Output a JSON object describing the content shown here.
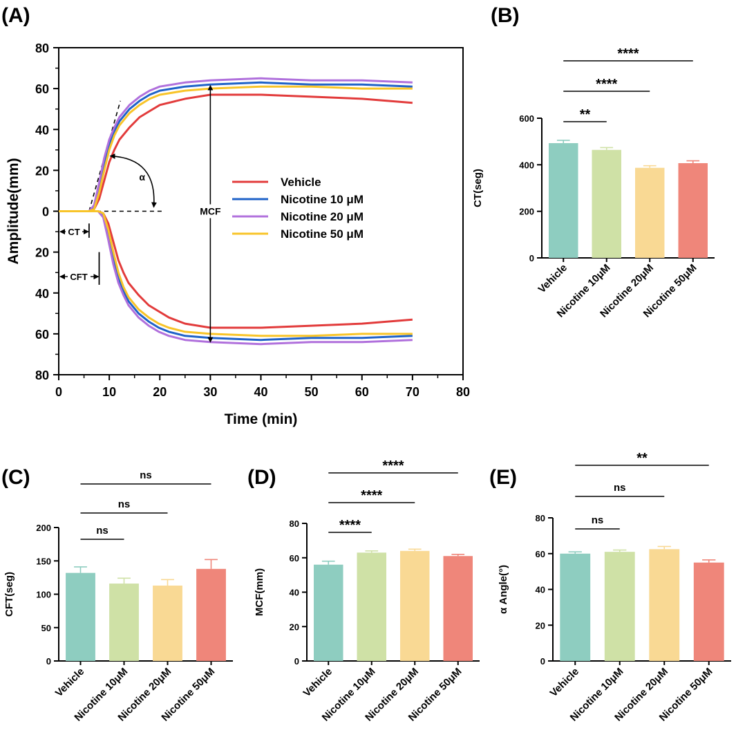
{
  "chart_data": [
    {
      "id": "A",
      "type": "line",
      "panel_label": "(A)",
      "xlabel": "Time (min)",
      "ylabel": "Amplitude(mm)",
      "xlim": [
        0,
        80
      ],
      "ylim": [
        -80,
        80
      ],
      "x_ticks": [
        0,
        10,
        20,
        30,
        40,
        50,
        60,
        70,
        80
      ],
      "y_ticks": [
        80,
        60,
        40,
        20,
        0,
        20,
        40,
        60,
        80
      ],
      "colors": [
        "#e23b3b",
        "#1f62c8",
        "#b070dc",
        "#f8c428"
      ],
      "legend_position": "center",
      "series": [
        {
          "name": "Vehicle",
          "upper": [
            [
              0,
              0
            ],
            [
              6,
              0
            ],
            [
              7,
              1
            ],
            [
              8,
              6
            ],
            [
              9,
              15
            ],
            [
              10,
              24
            ],
            [
              11,
              30
            ],
            [
              12,
              35
            ],
            [
              14,
              41
            ],
            [
              16,
              46
            ],
            [
              18,
              49
            ],
            [
              20,
              52
            ],
            [
              25,
              55
            ],
            [
              30,
              57
            ],
            [
              40,
              57
            ],
            [
              50,
              56
            ],
            [
              60,
              55
            ],
            [
              70,
              53
            ]
          ]
        },
        {
          "name": "Nicotine 10 μM",
          "upper": [
            [
              0,
              0
            ],
            [
              6,
              0
            ],
            [
              7,
              2
            ],
            [
              8,
              12
            ],
            [
              9,
              24
            ],
            [
              10,
              33
            ],
            [
              11,
              39
            ],
            [
              12,
              44
            ],
            [
              14,
              50
            ],
            [
              16,
              54
            ],
            [
              18,
              57
            ],
            [
              20,
              59
            ],
            [
              25,
              61
            ],
            [
              30,
              62
            ],
            [
              40,
              63
            ],
            [
              50,
              62
            ],
            [
              60,
              62
            ],
            [
              70,
              61
            ]
          ]
        },
        {
          "name": "Nicotine 20 μM",
          "upper": [
            [
              0,
              0
            ],
            [
              6,
              0
            ],
            [
              7,
              3
            ],
            [
              8,
              14
            ],
            [
              9,
              26
            ],
            [
              10,
              35
            ],
            [
              11,
              41
            ],
            [
              12,
              46
            ],
            [
              14,
              52
            ],
            [
              16,
              56
            ],
            [
              18,
              59
            ],
            [
              20,
              61
            ],
            [
              25,
              63
            ],
            [
              30,
              64
            ],
            [
              40,
              65
            ],
            [
              50,
              64
            ],
            [
              60,
              64
            ],
            [
              70,
              63
            ]
          ]
        },
        {
          "name": "Nicotine 50 μM",
          "upper": [
            [
              0,
              0
            ],
            [
              6,
              0
            ],
            [
              7,
              1
            ],
            [
              8,
              9
            ],
            [
              9,
              20
            ],
            [
              10,
              30
            ],
            [
              11,
              37
            ],
            [
              12,
              42
            ],
            [
              14,
              48
            ],
            [
              16,
              52
            ],
            [
              18,
              55
            ],
            [
              20,
              57
            ],
            [
              25,
              59
            ],
            [
              30,
              60
            ],
            [
              40,
              61
            ],
            [
              50,
              61
            ],
            [
              60,
              60
            ],
            [
              70,
              60
            ]
          ]
        }
      ],
      "annotations": {
        "alpha": "α",
        "mcf": "MCF",
        "ct": "CT",
        "cft": "CFT"
      }
    },
    {
      "id": "B",
      "type": "bar",
      "panel_label": "(B)",
      "ylabel": "CT(seg)",
      "ylim": [
        0,
        600
      ],
      "y_ticks": [
        0,
        200,
        400,
        600
      ],
      "categories": [
        "Vehicle",
        "Nicotine 10μM",
        "Nicotine 20μM",
        "Nicotine 50μM"
      ],
      "values": [
        493,
        464,
        387,
        407
      ],
      "errors": [
        12,
        10,
        9,
        10
      ],
      "colors": [
        "#8ecdc0",
        "#cfe1a6",
        "#f9d994",
        "#ef867a"
      ],
      "significance": [
        {
          "from": 0,
          "to": 1,
          "label": "**"
        },
        {
          "from": 0,
          "to": 2,
          "label": "****"
        },
        {
          "from": 0,
          "to": 3,
          "label": "****"
        }
      ]
    },
    {
      "id": "C",
      "type": "bar",
      "panel_label": "(C)",
      "ylabel": "CFT(seg)",
      "ylim": [
        0,
        200
      ],
      "y_ticks": [
        0,
        50,
        100,
        150,
        200
      ],
      "categories": [
        "Vehicle",
        "Nicotine 10μM",
        "Nicotine 20μM",
        "Nicotine 50μM"
      ],
      "values": [
        132,
        116,
        113,
        138
      ],
      "errors": [
        9,
        8,
        9,
        14
      ],
      "colors": [
        "#8ecdc0",
        "#cfe1a6",
        "#f9d994",
        "#ef867a"
      ],
      "significance": [
        {
          "from": 0,
          "to": 1,
          "label": "ns"
        },
        {
          "from": 0,
          "to": 2,
          "label": "ns"
        },
        {
          "from": 0,
          "to": 3,
          "label": "ns"
        }
      ]
    },
    {
      "id": "D",
      "type": "bar",
      "panel_label": "(D)",
      "ylabel": "MCF(mm)",
      "ylim": [
        0,
        80
      ],
      "y_ticks": [
        0,
        20,
        40,
        60,
        80
      ],
      "categories": [
        "Vehicle",
        "Nicotine 10μM",
        "Nicotine 20μM",
        "Nicotine 50μM"
      ],
      "values": [
        56,
        63,
        64,
        61
      ],
      "errors": [
        2,
        1,
        1,
        1
      ],
      "colors": [
        "#8ecdc0",
        "#cfe1a6",
        "#f9d994",
        "#ef867a"
      ],
      "significance": [
        {
          "from": 0,
          "to": 1,
          "label": "****"
        },
        {
          "from": 0,
          "to": 2,
          "label": "****"
        },
        {
          "from": 0,
          "to": 3,
          "label": "****"
        }
      ]
    },
    {
      "id": "E",
      "type": "bar",
      "panel_label": "(E)",
      "ylabel": "α Angle(°)",
      "ylim": [
        0,
        80
      ],
      "y_ticks": [
        0,
        20,
        40,
        60,
        80
      ],
      "categories": [
        "Vehicle",
        "Nicotine 10μM",
        "Nicotine 20μM",
        "Nicotine 50μM"
      ],
      "values": [
        60,
        61,
        62.5,
        55
      ],
      "errors": [
        1,
        1,
        1.5,
        1.5
      ],
      "colors": [
        "#8ecdc0",
        "#cfe1a6",
        "#f9d994",
        "#ef867a"
      ],
      "significance": [
        {
          "from": 0,
          "to": 1,
          "label": "ns"
        },
        {
          "from": 0,
          "to": 2,
          "label": "ns"
        },
        {
          "from": 0,
          "to": 3,
          "label": "**"
        }
      ]
    }
  ]
}
